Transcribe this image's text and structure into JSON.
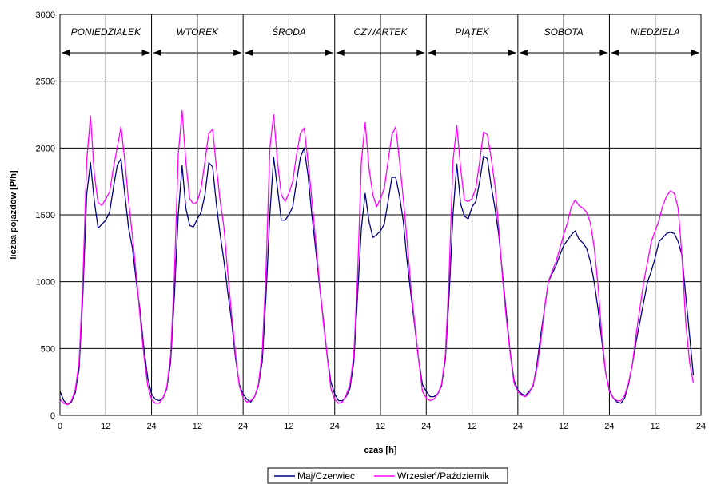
{
  "chart_data": {
    "type": "line",
    "xlabel": "czas [h]",
    "ylabel": "liczba pojazdów [P/h]",
    "ylim": [
      0,
      3000
    ],
    "yticks": [
      "0",
      "500",
      "1000",
      "1500",
      "2000",
      "2500",
      "3000"
    ],
    "xlim": [
      0,
      168
    ],
    "xtick_labels": [
      "0",
      "12",
      "24",
      "12",
      "24",
      "12",
      "24",
      "12",
      "24",
      "12",
      "24",
      "12",
      "24",
      "12",
      "24"
    ],
    "grid": true,
    "legend_position": "bottom",
    "days": [
      "PONIEDZIAŁEK",
      "WTOREK",
      "ŚRODA",
      "CZWARTEK",
      "PIĄTEK",
      "SOBOTA",
      "NIEDZIELA"
    ],
    "x_step_hours": 1,
    "series": [
      {
        "name": "Maj/Czerwiec",
        "color": "#000080",
        "values": [
          180,
          110,
          80,
          100,
          170,
          350,
          900,
          1650,
          1890,
          1600,
          1400,
          1430,
          1460,
          1520,
          1700,
          1870,
          1920,
          1650,
          1400,
          1250,
          1000,
          780,
          500,
          280,
          160,
          120,
          110,
          130,
          200,
          400,
          900,
          1500,
          1870,
          1550,
          1420,
          1410,
          1470,
          1520,
          1650,
          1890,
          1860,
          1580,
          1350,
          1150,
          920,
          700,
          430,
          230,
          160,
          120,
          100,
          140,
          220,
          400,
          900,
          1500,
          1930,
          1700,
          1460,
          1460,
          1500,
          1560,
          1750,
          1930,
          2000,
          1800,
          1500,
          1250,
          980,
          720,
          450,
          250,
          160,
          110,
          110,
          140,
          200,
          400,
          900,
          1400,
          1660,
          1450,
          1330,
          1350,
          1380,
          1430,
          1600,
          1780,
          1780,
          1640,
          1450,
          1150,
          900,
          660,
          420,
          230,
          180,
          140,
          140,
          160,
          220,
          420,
          900,
          1500,
          1880,
          1580,
          1490,
          1470,
          1560,
          1600,
          1750,
          1940,
          1920,
          1720,
          1550,
          1350,
          1050,
          760,
          470,
          260,
          190,
          160,
          150,
          180,
          220,
          380,
          600,
          800,
          1000,
          1060,
          1120,
          1200,
          1270,
          1310,
          1350,
          1380,
          1320,
          1290,
          1250,
          1150,
          1000,
          800,
          560,
          320,
          190,
          130,
          100,
          90,
          130,
          230,
          380,
          550,
          700,
          850,
          1000,
          1080,
          1180,
          1300,
          1330,
          1360,
          1370,
          1360,
          1300,
          1200,
          900,
          600,
          300
        ]
      },
      {
        "name": "Wrzesień/Październik",
        "color": "#ff00ff",
        "values": [
          120,
          90,
          80,
          110,
          190,
          400,
          1000,
          1900,
          2240,
          1800,
          1590,
          1570,
          1620,
          1670,
          1850,
          2000,
          2160,
          1900,
          1600,
          1340,
          1050,
          730,
          450,
          220,
          120,
          90,
          90,
          130,
          210,
          450,
          1050,
          1950,
          2280,
          1900,
          1620,
          1580,
          1600,
          1700,
          1900,
          2110,
          2140,
          1860,
          1600,
          1400,
          1060,
          750,
          460,
          220,
          130,
          100,
          110,
          140,
          230,
          470,
          1080,
          2000,
          2250,
          1900,
          1650,
          1600,
          1660,
          1750,
          1950,
          2110,
          2150,
          1900,
          1620,
          1310,
          1000,
          700,
          450,
          200,
          120,
          90,
          100,
          150,
          230,
          450,
          1050,
          1900,
          2190,
          1850,
          1650,
          1560,
          1620,
          1700,
          1900,
          2100,
          2160,
          1900,
          1620,
          1300,
          950,
          680,
          420,
          180,
          130,
          110,
          120,
          160,
          230,
          450,
          1050,
          1900,
          2170,
          1850,
          1610,
          1600,
          1620,
          1700,
          1900,
          2120,
          2100,
          1930,
          1720,
          1400,
          1020,
          720,
          460,
          240,
          180,
          150,
          140,
          170,
          230,
          350,
          550,
          800,
          1000,
          1080,
          1150,
          1250,
          1350,
          1440,
          1560,
          1610,
          1570,
          1550,
          1520,
          1440,
          1260,
          980,
          600,
          320,
          180,
          130,
          110,
          110,
          150,
          240,
          380,
          600,
          800,
          1000,
          1150,
          1300,
          1380,
          1460,
          1570,
          1640,
          1680,
          1660,
          1550,
          1200,
          700,
          400,
          240
        ]
      }
    ]
  }
}
